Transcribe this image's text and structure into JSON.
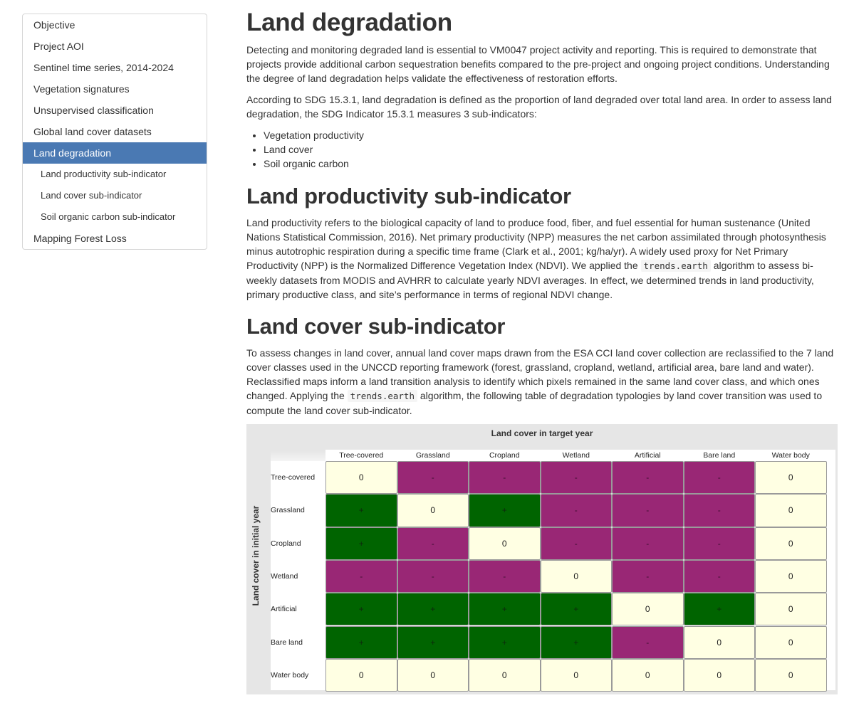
{
  "toc": [
    {
      "label": "Objective",
      "level": 1,
      "active": false
    },
    {
      "label": "Project AOI",
      "level": 1,
      "active": false
    },
    {
      "label": "Sentinel time series, 2014-2024",
      "level": 1,
      "active": false
    },
    {
      "label": "Vegetation signatures",
      "level": 1,
      "active": false
    },
    {
      "label": "Unsupervised classification",
      "level": 1,
      "active": false
    },
    {
      "label": "Global land cover datasets",
      "level": 1,
      "active": false
    },
    {
      "label": "Land degradation",
      "level": 1,
      "active": true
    },
    {
      "label": "Land productivity sub-indicator",
      "level": 2,
      "active": false
    },
    {
      "label": "Land cover sub-indicator",
      "level": 2,
      "active": false
    },
    {
      "label": "Soil organic carbon sub-indicator",
      "level": 2,
      "active": false
    },
    {
      "label": "Mapping Forest Loss",
      "level": 1,
      "active": false
    }
  ],
  "content": {
    "title": "Land degradation",
    "intro": "Detecting and monitoring degraded land is essential to VM0047 project activity and reporting. This is required to demonstrate that projects provide additional carbon sequestration benefits compared to the pre-project and ongoing project conditions. Understanding the degree of land degradation helps validate the effectiveness of restoration efforts.",
    "sdg_text": "According to SDG 15.3.1, land degradation is defined as the proportion of land degraded over total land area. In order to assess land degradation, the SDG Indicator 15.3.1 measures 3 sub-indicators:",
    "bullets": [
      "Vegetation productivity",
      "Land cover",
      "Soil organic carbon"
    ],
    "productivity": {
      "heading": "Land productivity sub-indicator",
      "text_before": "Land productivity refers to the biological capacity of land to produce food, fiber, and fuel essential for human sustenance (United Nations Statistical Commission, 2016). Net primary productivity (NPP) measures the net carbon assimilated through photosynthesis minus autotrophic respiration during a specific time frame (Clark et al., 2001; kg/ha/yr). A widely used proxy for Net Primary Productivity (NPP) is the Normalized Difference Vegetation Index (NDVI). We applied the ",
      "code": "trends.earth",
      "text_after": " algorithm to assess bi-weekly datasets from MODIS and AVHRR to calculate yearly NDVI averages. In effect, we determined trends in land productivity, primary productive class, and site’s performance in terms of regional NDVI change."
    },
    "landcover": {
      "heading": "Land cover sub-indicator",
      "text_before": "To assess changes in land cover, annual land cover maps drawn from the ESA CCI land cover collection are reclassified to the 7 land cover classes used in the UNCCD reporting framework (forest, grassland, cropland, wetland, artificial area, bare land and water). Reclassified maps inform a land transition analysis to identify which pixels remained in the same land cover class, and which ones changed. Applying the ",
      "code": "trends.earth",
      "text_after": " algorithm, the following table of degradation typologies by land cover transition was used to compute the land cover sub-indicator."
    }
  },
  "matrix": {
    "title": "Land cover in target year",
    "ylabel": "Land cover in initial year",
    "columns": [
      "Tree-covered",
      "Grassland",
      "Cropland",
      "Wetland",
      "Artificial",
      "Bare land",
      "Water body"
    ],
    "rows": [
      "Tree-covered",
      "Grassland",
      "Cropland",
      "Wetland",
      "Artificial",
      "Bare land",
      "Water body"
    ],
    "values": [
      [
        "0",
        "-",
        "-",
        "-",
        "-",
        "-",
        "0"
      ],
      [
        "+",
        "0",
        "+",
        "-",
        "-",
        "-",
        "0"
      ],
      [
        "+",
        "-",
        "0",
        "-",
        "-",
        "-",
        "0"
      ],
      [
        "-",
        "-",
        "-",
        "0",
        "-",
        "-",
        "0"
      ],
      [
        "+",
        "+",
        "+",
        "+",
        "0",
        "+",
        "0"
      ],
      [
        "+",
        "+",
        "+",
        "+",
        "-",
        "0",
        "0"
      ],
      [
        "0",
        "0",
        "0",
        "0",
        "0",
        "0",
        "0"
      ]
    ],
    "colors": {
      "improvement": "#006400",
      "degradation": "#992775",
      "stable": "#ffffe3"
    }
  }
}
